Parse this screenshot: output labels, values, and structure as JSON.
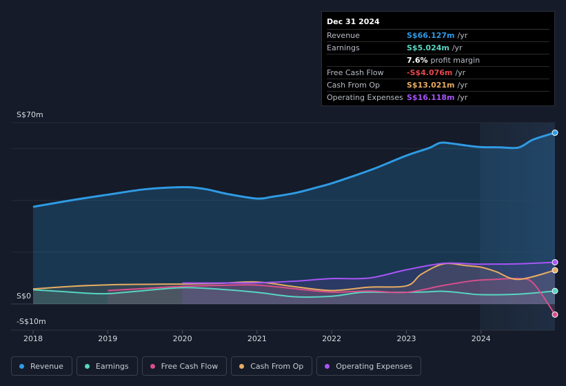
{
  "chart_data": {
    "type": "area",
    "currency_unit": "S$",
    "y_labels": {
      "top": "S$70m",
      "zero": "S$0",
      "bottom": "-S$10m"
    },
    "ylim": [
      -10,
      70
    ],
    "xlim": [
      2017.7,
      2024.99
    ],
    "x_ticks": [
      "2018",
      "2019",
      "2020",
      "2021",
      "2022",
      "2023",
      "2024"
    ],
    "series": [
      {
        "name": "Revenue",
        "color": "#2f9be4",
        "fill": true,
        "x": [
          2018.0,
          2018.5,
          2019.0,
          2019.5,
          2020.0,
          2020.3,
          2020.6,
          2021.0,
          2021.2,
          2021.5,
          2021.8,
          2022.0,
          2022.3,
          2022.6,
          2023.0,
          2023.3,
          2023.45,
          2023.6,
          2023.8,
          2024.0,
          2024.25,
          2024.5,
          2024.7,
          2024.99
        ],
        "values": [
          37.5,
          40,
          42.2,
          44.3,
          45.1,
          44.4,
          42.5,
          40.7,
          41.4,
          42.8,
          45,
          46.6,
          49.5,
          52.6,
          57.3,
          60.2,
          62.2,
          62,
          61.2,
          60.6,
          60.5,
          60.4,
          63.5,
          66.127
        ]
      },
      {
        "name": "Earnings",
        "color": "#58d6c2",
        "fill": true,
        "x": [
          2018.0,
          2018.4,
          2018.7,
          2019.0,
          2019.5,
          2020.0,
          2020.5,
          2021.0,
          2021.5,
          2022.0,
          2022.4,
          2022.8,
          2023.2,
          2023.5,
          2023.8,
          2024.0,
          2024.5,
          2024.99
        ],
        "values": [
          5.5,
          4.8,
          4.2,
          4.0,
          5.2,
          6.3,
          5.7,
          4.5,
          2.8,
          3.0,
          4.5,
          4.5,
          4.6,
          4.9,
          4.1,
          3.6,
          3.8,
          5.024
        ]
      },
      {
        "name": "Free Cash Flow",
        "color": "#d94f8a",
        "fill": true,
        "x": [
          2019.0,
          2019.5,
          2020.0,
          2020.5,
          2021.0,
          2021.5,
          2022.0,
          2022.5,
          2023.0,
          2023.5,
          2023.9,
          2024.2,
          2024.5,
          2024.7,
          2024.99
        ],
        "values": [
          5.2,
          6.0,
          6.8,
          7.2,
          7.3,
          5.9,
          4.6,
          5.0,
          4.5,
          7.2,
          9.0,
          9.5,
          9.8,
          8.0,
          -4.076
        ]
      },
      {
        "name": "Cash From Op",
        "color": "#e8ad63",
        "fill": true,
        "x": [
          2018.0,
          2018.5,
          2019.0,
          2019.5,
          2020.0,
          2020.5,
          2021.0,
          2021.5,
          2022.0,
          2022.5,
          2023.0,
          2023.2,
          2023.5,
          2023.8,
          2024.0,
          2024.2,
          2024.5,
          2024.99
        ],
        "values": [
          5.8,
          6.8,
          7.4,
          7.6,
          7.7,
          8.0,
          8.5,
          6.7,
          5.2,
          6.5,
          7.0,
          11.5,
          15.5,
          14.8,
          14.2,
          12.5,
          9.5,
          13.021
        ]
      },
      {
        "name": "Operating Expenses",
        "color": "#a855f7",
        "fill": true,
        "x": [
          2020.0,
          2020.5,
          2021.0,
          2021.5,
          2022.0,
          2022.5,
          2023.0,
          2023.5,
          2023.9,
          2024.2,
          2024.5,
          2024.99
        ],
        "values": [
          8.1,
          8.1,
          8.2,
          8.8,
          9.8,
          10.0,
          13.2,
          15.7,
          15.4,
          15.4,
          15.5,
          16.118
        ]
      }
    ]
  },
  "tooltip": {
    "date": "Dec 31 2024",
    "rows": [
      {
        "label": "Revenue",
        "value": "S$66.127m",
        "unit": "/yr",
        "color": "#2f9be4"
      },
      {
        "label": "Earnings",
        "value": "S$5.024m",
        "unit": "/yr",
        "color": "#58d6c2"
      },
      {
        "label": "",
        "value": "7.6%",
        "unit": "profit margin",
        "color": "#ffffff"
      },
      {
        "label": "Free Cash Flow",
        "value": "-S$4.076m",
        "unit": "/yr",
        "color": "#e5484d"
      },
      {
        "label": "Cash From Op",
        "value": "S$13.021m",
        "unit": "/yr",
        "color": "#e8ad63"
      },
      {
        "label": "Operating Expenses",
        "value": "S$16.118m",
        "unit": "/yr",
        "color": "#a855f7"
      }
    ]
  },
  "legend": [
    {
      "label": "Revenue",
      "color": "#2f9be4"
    },
    {
      "label": "Earnings",
      "color": "#58d6c2"
    },
    {
      "label": "Free Cash Flow",
      "color": "#d94f8a"
    },
    {
      "label": "Cash From Op",
      "color": "#e8ad63"
    },
    {
      "label": "Operating Expenses",
      "color": "#a855f7"
    }
  ]
}
